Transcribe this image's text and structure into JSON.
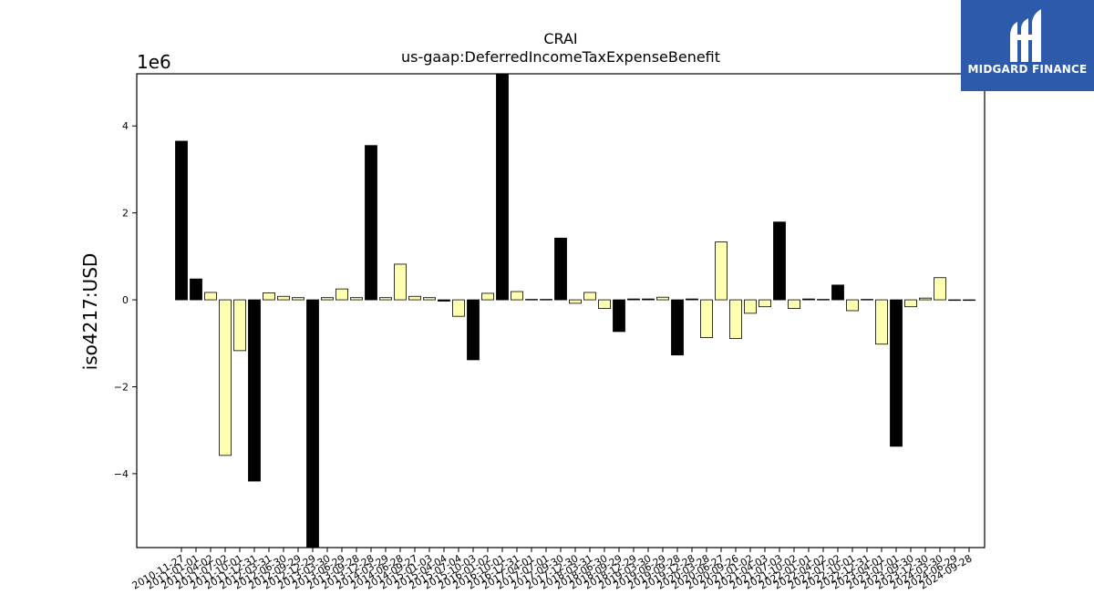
{
  "chart_data": {
    "type": "bar",
    "title": "CRAI",
    "subtitle": "us-gaap:DeferredIncomeTaxExpenseBenefit",
    "ylabel": "iso4217:USD",
    "xlabel": "",
    "y_offset_label": "1e6",
    "ylim": [
      -5700000,
      5200000
    ],
    "yticks": [
      -4000000,
      -2000000,
      0,
      2000000,
      4000000
    ],
    "ytick_labels": [
      "−4",
      "−2",
      "0",
      "2",
      "4"
    ],
    "grid": false,
    "legend": "none",
    "colors": {
      "highlight": "#000000",
      "normal": "#ffffb2",
      "edge": "#000000"
    },
    "categories": [
      "2010-11-27",
      "2011-01-01",
      "2011-04-02",
      "2011-07-02",
      "2011-10-01",
      "2011-12-31",
      "2012-03-31",
      "2012-06-30",
      "2012-09-29",
      "2012-12-29",
      "2013-03-30",
      "2013-06-29",
      "2013-09-28",
      "2013-12-28",
      "2014-03-29",
      "2014-06-28",
      "2014-09-27",
      "2015-01-03",
      "2015-04-04",
      "2015-07-04",
      "2015-10-03",
      "2016-01-02",
      "2016-10-01",
      "2016-12-31",
      "2017-04-01",
      "2017-07-01",
      "2017-09-30",
      "2017-12-30",
      "2018-03-31",
      "2018-06-30",
      "2018-09-29",
      "2018-12-29",
      "2019-03-30",
      "2019-06-29",
      "2019-09-28",
      "2019-12-28",
      "2020-03-28",
      "2020-06-27",
      "2020-09-26",
      "2021-01-02",
      "2021-04-03",
      "2021-07-03",
      "2021-10-02",
      "2022-01-01",
      "2022-04-02",
      "2022-07-02",
      "2022-10-01",
      "2022-12-31",
      "2023-04-01",
      "2023-07-01",
      "2023-09-30",
      "2023-12-30",
      "2024-03-30",
      "2024-06-29",
      "2024-09-28"
    ],
    "visible_tick_labels": [
      "2010-11-27",
      "2011-01-01",
      "2011-04-02",
      "2011-07-02",
      "2011-10-01",
      "2011-12-31",
      "2012-03-31",
      "2012-06-30",
      "2012-09-29",
      "2012-12-29",
      "2013-03-30",
      "2013-06-29",
      "2013-09-28",
      "2013-12-28",
      "2014-03-29",
      "2014-06-28",
      "2014-09-27",
      "2015-01-03",
      "2015-04-04",
      "2015-07-04",
      "2015-10-03",
      "2016-01-02",
      "2016-10-01",
      "2016-12-31",
      "2017-04-01",
      "2017-07-01",
      "2017-09-30",
      "2017-12-30",
      "2018-03-31",
      "2018-06-30",
      "2018-09-29",
      "2018-12-29",
      "2019-03-30",
      "2019-06-29",
      "2019-09-28",
      "2019-12-28",
      "2020-03-28",
      "2020-06-27",
      "2020-09-26",
      "2021-01-02",
      "2021-04-03",
      "2021-07-03",
      "2021-10-02",
      "2022-01-01",
      "2022-04-02",
      "2022-07-02",
      "2022-10-01",
      "2022-12-31",
      "2023-04-01",
      "2023-07-01",
      "2023-09-30",
      "2023-12-30",
      "2024-03-30",
      "2024-06-29",
      "2024-09-28"
    ],
    "values": [
      3650000,
      480000,
      170000,
      -3580000,
      -1170000,
      -4170000,
      160000,
      80000,
      50000,
      -5800000,
      50000,
      250000,
      50000,
      3550000,
      50000,
      820000,
      80000,
      50000,
      -30000,
      -380000,
      -1380000,
      150000,
      5300000,
      190000,
      10000,
      10000,
      1420000,
      -80000,
      170000,
      -200000,
      -730000,
      20000,
      20000,
      60000,
      -1270000,
      20000,
      -870000,
      1330000,
      -890000,
      -310000,
      -160000,
      1790000,
      -200000,
      20000,
      10000,
      340000,
      -250000,
      10000,
      -1020000,
      -3370000,
      -160000,
      40000,
      510000,
      0,
      0
    ],
    "highlight": [
      true,
      true,
      false,
      false,
      false,
      true,
      false,
      false,
      false,
      true,
      false,
      false,
      false,
      true,
      false,
      false,
      false,
      false,
      true,
      false,
      true,
      false,
      true,
      false,
      false,
      false,
      true,
      false,
      false,
      false,
      true,
      true,
      true,
      false,
      true,
      true,
      false,
      false,
      false,
      false,
      false,
      true,
      false,
      true,
      false,
      true,
      false,
      false,
      false,
      true,
      false,
      false,
      false,
      false,
      false
    ]
  },
  "logo": {
    "text": "MIDGARD FINANCE",
    "icon": "midgard-logo-icon"
  }
}
